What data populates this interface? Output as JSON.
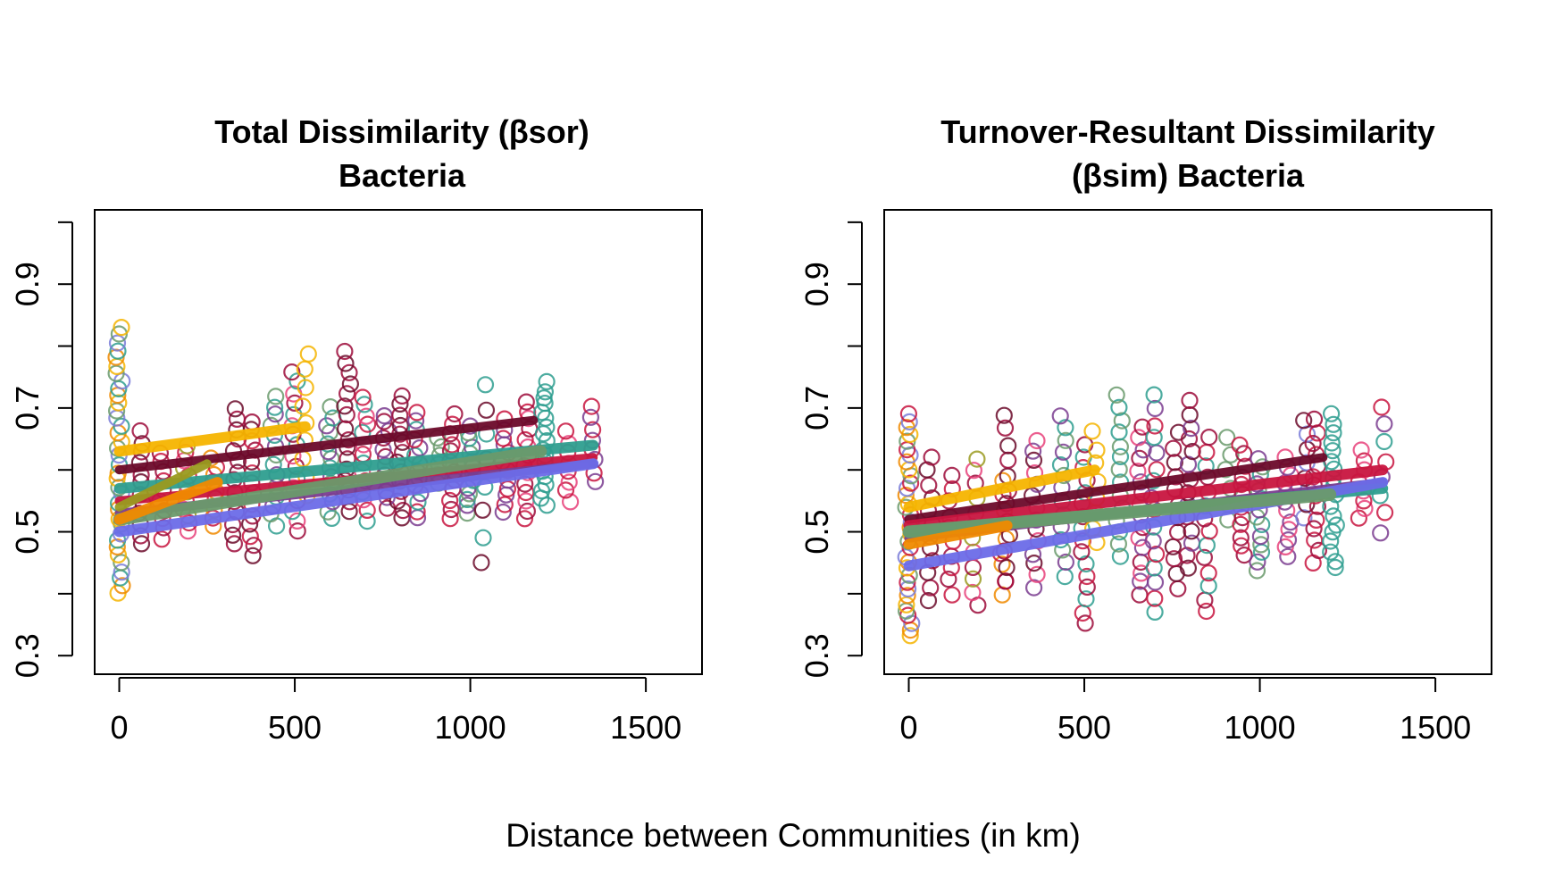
{
  "figure": {
    "xlabel": "Distance between Communities (in km)"
  },
  "chart_data": [
    {
      "type": "scatter",
      "title_lines": [
        "Total Dissimilarity (βsor)",
        "Bacteria"
      ],
      "xlim": [
        -70,
        1660
      ],
      "ylim": [
        0.27,
        1.02
      ],
      "xticks": [
        0,
        500,
        1000,
        1500
      ],
      "yticks": [
        0.3,
        0.4,
        0.5,
        0.6,
        0.7,
        0.8,
        0.9,
        1.0
      ],
      "ytick_labels": [
        "0.3",
        "",
        "0.5",
        "",
        "0.7",
        "",
        "0.9",
        ""
      ],
      "point_clusters": [
        {
          "x": 0,
          "y_min": 0.4,
          "y_max": 0.83,
          "colors": [
            "#F5B400",
            "#F08A00",
            "#2E9E8F",
            "#7A7CD8",
            "#6A9A6C"
          ],
          "n": 36
        },
        {
          "x": 60,
          "y_min": 0.48,
          "y_max": 0.66,
          "colors": [
            "#6B0A2A",
            "#9C0A3A"
          ],
          "n": 12
        },
        {
          "x": 120,
          "y_min": 0.49,
          "y_max": 0.63,
          "colors": [
            "#C8153F",
            "#9C0A3A"
          ],
          "n": 10
        },
        {
          "x": 190,
          "y_min": 0.5,
          "y_max": 0.64,
          "colors": [
            "#E8417A",
            "#C8153F",
            "#9A9A20"
          ],
          "n": 12
        },
        {
          "x": 270,
          "y_min": 0.51,
          "y_max": 0.62,
          "colors": [
            "#F08A00",
            "#C8153F"
          ],
          "n": 9
        },
        {
          "x": 330,
          "y_min": 0.48,
          "y_max": 0.7,
          "colors": [
            "#9C0A3A",
            "#6B0A2A"
          ],
          "n": 14
        },
        {
          "x": 380,
          "y_min": 0.46,
          "y_max": 0.68,
          "colors": [
            "#6B0A2A",
            "#9C0A3A",
            "#C8153F"
          ],
          "n": 14
        },
        {
          "x": 440,
          "y_min": 0.51,
          "y_max": 0.72,
          "colors": [
            "#2E9E8F",
            "#6A9A6C",
            "#7A3C8F"
          ],
          "n": 14
        },
        {
          "x": 500,
          "y_min": 0.5,
          "y_max": 0.76,
          "colors": [
            "#9C0A3A",
            "#E8417A",
            "#2E9E8F"
          ],
          "n": 16
        },
        {
          "x": 530,
          "y_min": 0.56,
          "y_max": 0.79,
          "colors": [
            "#F5B400"
          ],
          "n": 9
        },
        {
          "x": 600,
          "y_min": 0.52,
          "y_max": 0.7,
          "colors": [
            "#2E9E8F",
            "#6A9A6C",
            "#7A3C8F"
          ],
          "n": 14
        },
        {
          "x": 650,
          "y_min": 0.53,
          "y_max": 0.79,
          "colors": [
            "#6B0A2A",
            "#9C0A3A"
          ],
          "n": 16
        },
        {
          "x": 700,
          "y_min": 0.52,
          "y_max": 0.72,
          "colors": [
            "#2E9E8F",
            "#C8153F",
            "#E8417A"
          ],
          "n": 14
        },
        {
          "x": 760,
          "y_min": 0.54,
          "y_max": 0.69,
          "colors": [
            "#9C0A3A",
            "#7A3C8F"
          ],
          "n": 12
        },
        {
          "x": 800,
          "y_min": 0.52,
          "y_max": 0.72,
          "colors": [
            "#6B0A2A",
            "#9C0A3A"
          ],
          "n": 14
        },
        {
          "x": 850,
          "y_min": 0.52,
          "y_max": 0.69,
          "colors": [
            "#7A3C8F",
            "#C8153F",
            "#2E9E8F"
          ],
          "n": 14
        },
        {
          "x": 910,
          "y_min": 0.58,
          "y_max": 0.65,
          "colors": [
            "#6A9A6C"
          ],
          "n": 6
        },
        {
          "x": 950,
          "y_min": 0.52,
          "y_max": 0.69,
          "colors": [
            "#C8153F",
            "#9C0A3A"
          ],
          "n": 12
        },
        {
          "x": 1000,
          "y_min": 0.53,
          "y_max": 0.67,
          "colors": [
            "#6A9A6C",
            "#7A3C8F",
            "#2E9E8F"
          ],
          "n": 14
        },
        {
          "x": 1040,
          "y_min": 0.45,
          "y_max": 0.74,
          "colors": [
            "#6B0A2A",
            "#2E9E8F"
          ],
          "n": 8
        },
        {
          "x": 1100,
          "y_min": 0.53,
          "y_max": 0.68,
          "colors": [
            "#7A3C8F",
            "#C8153F"
          ],
          "n": 12
        },
        {
          "x": 1160,
          "y_min": 0.52,
          "y_max": 0.71,
          "colors": [
            "#C8153F",
            "#9C0A3A",
            "#E8417A"
          ],
          "n": 14
        },
        {
          "x": 1210,
          "y_min": 0.54,
          "y_max": 0.74,
          "colors": [
            "#2E9E8F"
          ],
          "n": 18
        },
        {
          "x": 1280,
          "y_min": 0.55,
          "y_max": 0.66,
          "colors": [
            "#E8417A",
            "#C8153F"
          ],
          "n": 8
        },
        {
          "x": 1350,
          "y_min": 0.58,
          "y_max": 0.7,
          "colors": [
            "#7A3C8F",
            "#C8153F"
          ],
          "n": 8
        }
      ],
      "lines": [
        {
          "x": [
            0,
            1180
          ],
          "y": [
            0.6,
            0.68
          ],
          "color": "#6B0A2A",
          "width": 10
        },
        {
          "x": [
            0,
            1350
          ],
          "y": [
            0.57,
            0.64
          ],
          "color": "#2E9E8F",
          "width": 12
        },
        {
          "x": [
            0,
            1350
          ],
          "y": [
            0.55,
            0.62
          ],
          "color": "#C8153F",
          "width": 10
        },
        {
          "x": [
            0,
            1350
          ],
          "y": [
            0.53,
            0.61
          ],
          "color": "#7A3C8F",
          "width": 10
        },
        {
          "x": [
            0,
            1350
          ],
          "y": [
            0.5,
            0.61
          ],
          "color": "#6B6BE8",
          "width": 12
        },
        {
          "x": [
            0,
            1200
          ],
          "y": [
            0.52,
            0.63
          ],
          "color": "#6A9A6C",
          "width": 14
        },
        {
          "x": [
            0,
            530
          ],
          "y": [
            0.63,
            0.67
          ],
          "color": "#F5B400",
          "width": 12
        },
        {
          "x": [
            0,
            280
          ],
          "y": [
            0.52,
            0.58
          ],
          "color": "#F08A00",
          "width": 12
        },
        {
          "x": [
            0,
            250
          ],
          "y": [
            0.54,
            0.61
          ],
          "color": "#9A9A20",
          "width": 10
        }
      ]
    },
    {
      "type": "scatter",
      "title_lines": [
        "Turnover-Resultant Dissimilarity",
        "(βsim) Bacteria"
      ],
      "xlim": [
        -70,
        1660
      ],
      "ylim": [
        0.27,
        1.02
      ],
      "xticks": [
        0,
        500,
        1000,
        1500
      ],
      "yticks": [
        0.3,
        0.4,
        0.5,
        0.6,
        0.7,
        0.8,
        0.9,
        1.0
      ],
      "ytick_labels": [
        "0.3",
        "",
        "0.5",
        "",
        "0.7",
        "",
        "0.9",
        ""
      ],
      "point_clusters": [
        {
          "x": 0,
          "y_min": 0.33,
          "y_max": 0.69,
          "colors": [
            "#F5B400",
            "#F08A00",
            "#7A7CD8",
            "#C8153F",
            "#6A9A6C"
          ],
          "n": 34
        },
        {
          "x": 60,
          "y_min": 0.39,
          "y_max": 0.62,
          "colors": [
            "#6B0A2A",
            "#9C0A3A"
          ],
          "n": 12
        },
        {
          "x": 120,
          "y_min": 0.4,
          "y_max": 0.59,
          "colors": [
            "#C8153F",
            "#9C0A3A"
          ],
          "n": 10
        },
        {
          "x": 190,
          "y_min": 0.38,
          "y_max": 0.62,
          "colors": [
            "#9C0A3A",
            "#E8417A",
            "#9A9A20"
          ],
          "n": 12
        },
        {
          "x": 270,
          "y_min": 0.4,
          "y_max": 0.58,
          "colors": [
            "#F08A00",
            "#C8153F"
          ],
          "n": 9
        },
        {
          "x": 280,
          "y_min": 0.42,
          "y_max": 0.69,
          "colors": [
            "#9C0A3A",
            "#6B0A2A"
          ],
          "n": 12
        },
        {
          "x": 360,
          "y_min": 0.41,
          "y_max": 0.65,
          "colors": [
            "#7A3C8F",
            "#E8417A",
            "#6B0A2A"
          ],
          "n": 14
        },
        {
          "x": 440,
          "y_min": 0.43,
          "y_max": 0.69,
          "colors": [
            "#2E9E8F",
            "#7A3C8F",
            "#6A9A6C"
          ],
          "n": 14
        },
        {
          "x": 500,
          "y_min": 0.35,
          "y_max": 0.64,
          "colors": [
            "#9C0A3A",
            "#C8153F",
            "#2E9E8F"
          ],
          "n": 16
        },
        {
          "x": 530,
          "y_min": 0.48,
          "y_max": 0.66,
          "colors": [
            "#F5B400"
          ],
          "n": 8
        },
        {
          "x": 600,
          "y_min": 0.46,
          "y_max": 0.72,
          "colors": [
            "#2E9E8F",
            "#6A9A6C"
          ],
          "n": 14
        },
        {
          "x": 660,
          "y_min": 0.4,
          "y_max": 0.67,
          "colors": [
            "#9C0A3A",
            "#7A3C8F",
            "#E8417A"
          ],
          "n": 16
        },
        {
          "x": 700,
          "y_min": 0.37,
          "y_max": 0.72,
          "colors": [
            "#2E9E8F",
            "#C8153F",
            "#7A3C8F"
          ],
          "n": 16
        },
        {
          "x": 760,
          "y_min": 0.41,
          "y_max": 0.66,
          "colors": [
            "#9C0A3A",
            "#6B0A2A"
          ],
          "n": 12
        },
        {
          "x": 800,
          "y_min": 0.44,
          "y_max": 0.71,
          "colors": [
            "#6B0A2A",
            "#9C0A3A",
            "#7A3C8F"
          ],
          "n": 14
        },
        {
          "x": 850,
          "y_min": 0.37,
          "y_max": 0.65,
          "colors": [
            "#C8153F",
            "#9C0A3A",
            "#2E9E8F"
          ],
          "n": 14
        },
        {
          "x": 910,
          "y_min": 0.52,
          "y_max": 0.65,
          "colors": [
            "#6A9A6C"
          ],
          "n": 6
        },
        {
          "x": 950,
          "y_min": 0.46,
          "y_max": 0.64,
          "colors": [
            "#9C0A3A",
            "#C8153F"
          ],
          "n": 12
        },
        {
          "x": 1000,
          "y_min": 0.44,
          "y_max": 0.62,
          "colors": [
            "#6A9A6C",
            "#7A3C8F",
            "#2E9E8F"
          ],
          "n": 14
        },
        {
          "x": 1080,
          "y_min": 0.46,
          "y_max": 0.62,
          "colors": [
            "#7A3C8F",
            "#E8417A"
          ],
          "n": 12
        },
        {
          "x": 1130,
          "y_min": 0.52,
          "y_max": 0.68,
          "colors": [
            "#7A7CD8",
            "#6B0A2A"
          ],
          "n": 8
        },
        {
          "x": 1160,
          "y_min": 0.45,
          "y_max": 0.68,
          "colors": [
            "#C8153F",
            "#9C0A3A"
          ],
          "n": 14
        },
        {
          "x": 1210,
          "y_min": 0.44,
          "y_max": 0.69,
          "colors": [
            "#2E9E8F"
          ],
          "n": 18
        },
        {
          "x": 1290,
          "y_min": 0.52,
          "y_max": 0.63,
          "colors": [
            "#C8153F",
            "#E8417A"
          ],
          "n": 8
        },
        {
          "x": 1350,
          "y_min": 0.5,
          "y_max": 0.7,
          "colors": [
            "#7A3C8F",
            "#C8153F",
            "#2E9E8F"
          ],
          "n": 8
        }
      ],
      "lines": [
        {
          "x": [
            0,
            1180
          ],
          "y": [
            0.52,
            0.62
          ],
          "color": "#6B0A2A",
          "width": 10
        },
        {
          "x": [
            0,
            1350
          ],
          "y": [
            0.51,
            0.6
          ],
          "color": "#C8153F",
          "width": 12
        },
        {
          "x": [
            0,
            1350
          ],
          "y": [
            0.49,
            0.58
          ],
          "color": "#7A3C8F",
          "width": 10
        },
        {
          "x": [
            0,
            1350
          ],
          "y": [
            0.5,
            0.57
          ],
          "color": "#2E9E8F",
          "width": 12
        },
        {
          "x": [
            0,
            1350
          ],
          "y": [
            0.445,
            0.58
          ],
          "color": "#6B6BE8",
          "width": 12
        },
        {
          "x": [
            0,
            1200
          ],
          "y": [
            0.5,
            0.56
          ],
          "color": "#6A9A6C",
          "width": 14
        },
        {
          "x": [
            0,
            530
          ],
          "y": [
            0.54,
            0.6
          ],
          "color": "#F5B400",
          "width": 12
        },
        {
          "x": [
            0,
            280
          ],
          "y": [
            0.48,
            0.51
          ],
          "color": "#F08A00",
          "width": 12
        }
      ]
    }
  ]
}
